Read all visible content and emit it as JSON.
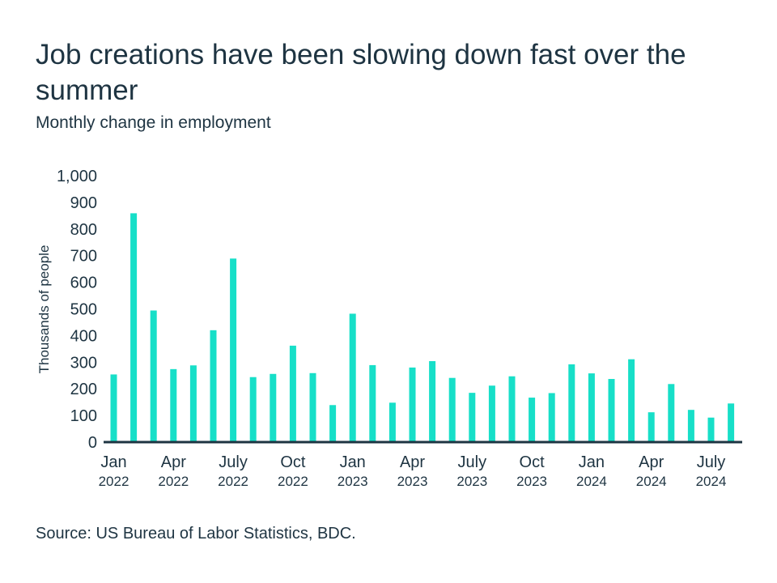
{
  "title": "Job creations have been slowing down fast over the summer",
  "subtitle": "Monthly change in employment",
  "source": "Source: US Bureau of Labor Statistics, BDC.",
  "colors": {
    "bar": "#17dfc8",
    "text": "#1e3442",
    "axis": "#1e3442"
  },
  "chart_data": {
    "type": "bar",
    "title": "Job creations have been slowing down fast over the summer",
    "subtitle": "Monthly change in employment",
    "xlabel": "",
    "ylabel": "Thousands of people",
    "ylim": [
      0,
      1000
    ],
    "yticks": [
      0,
      100,
      200,
      300,
      400,
      500,
      600,
      700,
      800,
      900,
      1000
    ],
    "ytick_labels": [
      "0",
      "100",
      "200",
      "300",
      "400",
      "500",
      "600",
      "700",
      "800",
      "900",
      "1,000"
    ],
    "grid": false,
    "categories": [
      "Jan 2022",
      "Feb 2022",
      "Mar 2022",
      "Apr 2022",
      "May 2022",
      "Jun 2022",
      "Jul 2022",
      "Aug 2022",
      "Sep 2022",
      "Oct 2022",
      "Nov 2022",
      "Dec 2022",
      "Jan 2023",
      "Feb 2023",
      "Mar 2023",
      "Apr 2023",
      "May 2023",
      "Jun 2023",
      "Jul 2023",
      "Aug 2023",
      "Sep 2023",
      "Oct 2023",
      "Nov 2023",
      "Dec 2023",
      "Jan 2024",
      "Feb 2024",
      "Mar 2024",
      "Apr 2024",
      "May 2024",
      "Jun 2024",
      "Jul 2024",
      "Aug 2024"
    ],
    "values": [
      254,
      859,
      494,
      274,
      288,
      420,
      689,
      244,
      256,
      362,
      259,
      139,
      482,
      289,
      148,
      280,
      304,
      241,
      185,
      212,
      247,
      167,
      184,
      292,
      258,
      237,
      311,
      112,
      218,
      121,
      92,
      145
    ],
    "xtick_labels": [
      {
        "index": 0,
        "month": "Jan",
        "year": "2022"
      },
      {
        "index": 3,
        "month": "Apr",
        "year": "2022"
      },
      {
        "index": 6,
        "month": "July",
        "year": "2022"
      },
      {
        "index": 9,
        "month": "Oct",
        "year": "2022"
      },
      {
        "index": 12,
        "month": "Jan",
        "year": "2023"
      },
      {
        "index": 15,
        "month": "Apr",
        "year": "2023"
      },
      {
        "index": 18,
        "month": "July",
        "year": "2023"
      },
      {
        "index": 21,
        "month": "Oct",
        "year": "2023"
      },
      {
        "index": 24,
        "month": "Jan",
        "year": "2024"
      },
      {
        "index": 27,
        "month": "Apr",
        "year": "2024"
      },
      {
        "index": 30,
        "month": "July",
        "year": "2024"
      }
    ]
  }
}
